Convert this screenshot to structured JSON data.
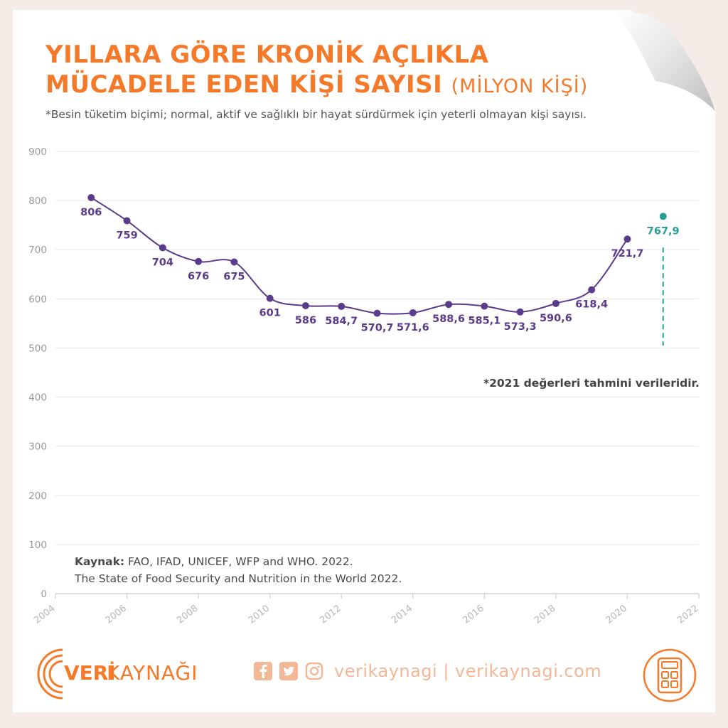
{
  "title": {
    "line1": "YILLARA GÖRE KRONİK AÇLIKLA",
    "line2": "MÜCADELE EDEN KİŞİ SAYISI",
    "unit": "(MİLYON KİŞİ)"
  },
  "subtitle": "*Besin tüketim biçimi; normal, aktif ve sağlıklı bir hayat sürdürmek için yeterli olmayan kişi sayısı.",
  "source": {
    "label": "Kaynak:",
    "text1": "FAO, IFAD, UNICEF, WFP and WHO. 2022.",
    "text2": "The State of Food Security and Nutrition in the World 2022."
  },
  "note": "*2021 değerleri tahmini verileridir.",
  "footer": {
    "brand_part1": "VERİ",
    "brand_part2": "KAYNAĞI",
    "social_text": "verikaynagi | verikaynagi.com"
  },
  "colors": {
    "title": "#f47a2a",
    "series": "#5b3b8c",
    "estimate": "#2a9d96",
    "grid": "#ececec",
    "social": "#f2b896"
  },
  "icons": [
    "facebook-icon",
    "twitter-icon",
    "instagram-icon",
    "calculator-icon"
  ],
  "chart_data": {
    "type": "line",
    "title": "YILLARA GÖRE KRONİK AÇLIKLA MÜCADELE EDEN KİŞİ SAYISI (MİLYON KİŞİ)",
    "xlim": [
      2004,
      2022
    ],
    "ylim": [
      0,
      900
    ],
    "xticks": [
      2004,
      2006,
      2008,
      2010,
      2012,
      2014,
      2016,
      2018,
      2020,
      2022
    ],
    "yticks": [
      0,
      100,
      200,
      300,
      400,
      500,
      600,
      700,
      800,
      900
    ],
    "grid": true,
    "series": [
      {
        "x": [
          2005,
          2006,
          2007,
          2008,
          2009,
          2010,
          2011,
          2012,
          2013,
          2014,
          2015,
          2016,
          2017,
          2018,
          2019,
          2020
        ],
        "y": [
          806,
          759,
          704,
          676,
          675,
          601,
          586,
          584.7,
          570.7,
          571.6,
          588.6,
          585.1,
          573.3,
          590.6,
          618.4,
          721.7
        ],
        "labels": [
          "806",
          "759",
          "704",
          "676",
          "675",
          "601",
          "586",
          "584,7",
          "570,7",
          "571,6",
          "588,6",
          "585,1",
          "573,3",
          "590,6",
          "618,4",
          "721,7"
        ]
      },
      {
        "x": [
          2021
        ],
        "y": [
          767.9
        ],
        "labels": [
          "767,9"
        ]
      }
    ]
  }
}
